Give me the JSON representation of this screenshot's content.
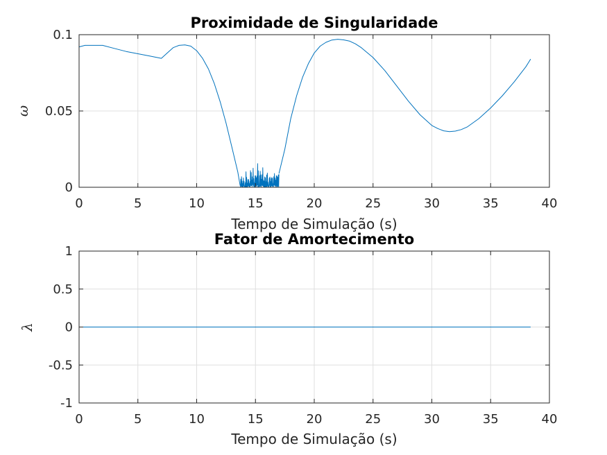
{
  "chart_data": [
    {
      "type": "line",
      "title": "Proximidade de Singularidade",
      "xlabel": "Tempo de Simulação (s)",
      "ylabel": "ω",
      "xlim": [
        0,
        40
      ],
      "ylim": [
        0,
        0.1
      ],
      "xticks": [
        0,
        5,
        10,
        15,
        20,
        25,
        30,
        35,
        40
      ],
      "yticks": [
        0,
        0.05,
        0.1
      ],
      "xtick_labels": [
        "0",
        "5",
        "10",
        "15",
        "20",
        "25",
        "30",
        "35",
        "40"
      ],
      "ytick_labels": [
        "0",
        "0.05",
        "0.1"
      ],
      "grid": true,
      "color": "#0072bd",
      "series": [
        {
          "x": [
            0,
            0.5,
            1,
            2,
            3,
            4,
            5,
            6,
            7,
            7.5,
            8,
            8.5,
            9,
            9.5,
            10,
            10.5,
            11,
            11.5,
            12,
            12.5,
            13,
            13.5,
            13.7
          ],
          "y": [
            0.092,
            0.093,
            0.093,
            0.093,
            0.091,
            0.089,
            0.0875,
            0.086,
            0.0845,
            0.088,
            0.0915,
            0.093,
            0.0933,
            0.0925,
            0.0895,
            0.0845,
            0.0775,
            0.068,
            0.056,
            0.042,
            0.026,
            0.01,
            0.001
          ]
        },
        {
          "noise": true,
          "x_range": [
            13.7,
            17.0
          ],
          "y_range": [
            0,
            0.018
          ],
          "x": [
            13.7,
            13.8,
            13.9,
            14.0,
            14.1,
            14.2,
            14.3,
            14.4,
            14.5,
            14.6,
            14.7,
            14.8,
            14.9,
            15.0,
            15.1,
            15.2,
            15.3,
            15.4,
            15.5,
            15.6,
            15.7,
            15.8,
            15.9,
            16.0,
            16.1,
            16.2,
            16.3,
            16.4,
            16.5,
            16.6,
            16.7,
            16.8,
            16.9,
            17.0
          ],
          "y": [
            0.0,
            0.01,
            0.002,
            0.008,
            0.0,
            0.012,
            0.003,
            0.009,
            0.001,
            0.014,
            0.004,
            0.016,
            0.002,
            0.013,
            0.006,
            0.018,
            0.001,
            0.015,
            0.005,
            0.017,
            0.002,
            0.011,
            0.004,
            0.012,
            0.0,
            0.009,
            0.003,
            0.01,
            0.002,
            0.011,
            0.006,
            0.01,
            0.008,
            0.009
          ]
        },
        {
          "x": [
            17.0,
            17.5,
            18,
            18.5,
            19,
            19.5,
            20,
            20.5,
            21,
            21.5,
            22,
            22.5,
            23,
            23.5,
            24,
            25,
            26,
            27,
            28,
            29,
            30,
            30.5,
            31,
            31.5,
            32,
            32.5,
            33,
            34,
            35,
            36,
            37,
            38,
            38.4
          ],
          "y": [
            0.009,
            0.025,
            0.045,
            0.06,
            0.072,
            0.081,
            0.088,
            0.0925,
            0.095,
            0.0965,
            0.097,
            0.0966,
            0.0958,
            0.094,
            0.0915,
            0.085,
            0.0765,
            0.0665,
            0.0565,
            0.0475,
            0.0405,
            0.0385,
            0.037,
            0.0365,
            0.0368,
            0.0378,
            0.0395,
            0.045,
            0.052,
            0.06,
            0.069,
            0.079,
            0.084
          ]
        }
      ]
    },
    {
      "type": "line",
      "title": "Fator de Amortecimento",
      "xlabel": "Tempo de Simulação (s)",
      "ylabel": "λ",
      "xlim": [
        0,
        40
      ],
      "ylim": [
        -1,
        1
      ],
      "xticks": [
        0,
        5,
        10,
        15,
        20,
        25,
        30,
        35,
        40
      ],
      "yticks": [
        -1,
        -0.5,
        0,
        0.5,
        1
      ],
      "xtick_labels": [
        "0",
        "5",
        "10",
        "15",
        "20",
        "25",
        "30",
        "35",
        "40"
      ],
      "ytick_labels": [
        "-1",
        "-0.5",
        "0",
        "0.5",
        "1"
      ],
      "grid": true,
      "color": "#0072bd",
      "series": [
        {
          "x": [
            0,
            38.4
          ],
          "y": [
            0,
            0
          ]
        }
      ]
    }
  ]
}
